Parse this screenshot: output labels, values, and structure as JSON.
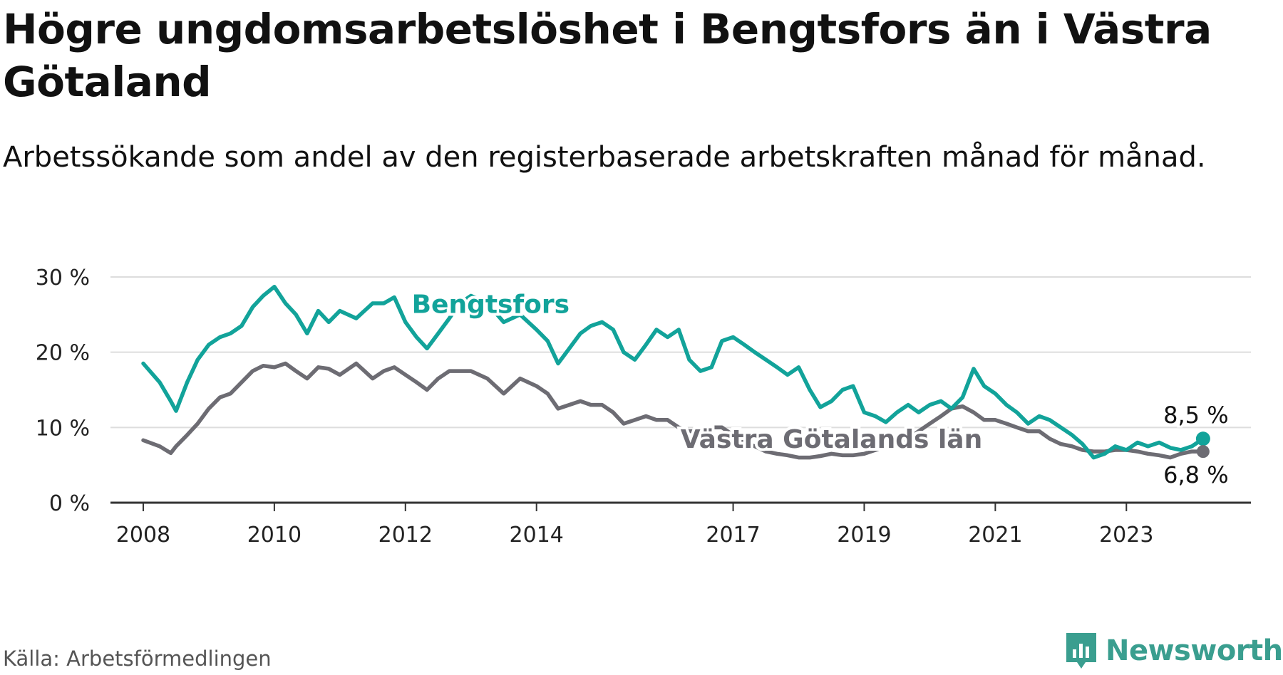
{
  "title": "Högre ungdomsarbetslöshet i Bengtsfors än i Västra Götaland",
  "subtitle": "Arbetssökande som andel av den registerbaserade arbetskraften månad för månad.",
  "source": "Källa: Arbetsförmedlingen",
  "logo_text": "Newsworthy",
  "colors": {
    "bengtsfors": "#12a39a",
    "vastra_gotaland": "#6d6c73",
    "grid": "#dddddd",
    "axis": "#333333",
    "logo": "#3a9e8f"
  },
  "chart_data": {
    "type": "line",
    "title": "Högre ungdomsarbetslöshet i Bengtsfors än i Västra Götaland",
    "subtitle": "Arbetssökande som andel av den registerbaserade arbetskraften månad för månad.",
    "xlabel": "",
    "ylabel": "",
    "x_range": [
      2007.5,
      2024.9
    ],
    "ylim": [
      0,
      30
    ],
    "y_ticks": [
      0,
      10,
      20,
      30
    ],
    "y_tick_labels": [
      "0 %",
      "10 %",
      "20 %",
      "30 %"
    ],
    "x_ticks": [
      2008,
      2010,
      2012,
      2014,
      2017,
      2019,
      2021,
      2023
    ],
    "x_tick_labels": [
      "2008",
      "2010",
      "2012",
      "2014",
      "2017",
      "2019",
      "2021",
      "2023"
    ],
    "grid": true,
    "series": [
      {
        "name": "Bengtsfors",
        "color": "#12a39a",
        "end_value_label": "8,5 %",
        "x": [
          2008.0,
          2008.25,
          2008.42,
          2008.5,
          2008.67,
          2008.83,
          2009.0,
          2009.17,
          2009.33,
          2009.5,
          2009.67,
          2009.83,
          2010.0,
          2010.17,
          2010.33,
          2010.5,
          2010.67,
          2010.83,
          2011.0,
          2011.25,
          2011.5,
          2011.67,
          2011.83,
          2012.0,
          2012.17,
          2012.33,
          2012.5,
          2012.67,
          2012.83,
          2013.0,
          2013.25,
          2013.5,
          2013.75,
          2014.0,
          2014.17,
          2014.33,
          2014.5,
          2014.67,
          2014.83,
          2015.0,
          2015.17,
          2015.33,
          2015.5,
          2015.67,
          2015.83,
          2016.0,
          2016.17,
          2016.33,
          2016.5,
          2016.67,
          2016.83,
          2017.0,
          2017.17,
          2017.33,
          2017.5,
          2017.67,
          2017.83,
          2018.0,
          2018.17,
          2018.33,
          2018.5,
          2018.67,
          2018.83,
          2019.0,
          2019.17,
          2019.33,
          2019.5,
          2019.67,
          2019.83,
          2020.0,
          2020.17,
          2020.33,
          2020.5,
          2020.67,
          2020.83,
          2021.0,
          2021.17,
          2021.33,
          2021.5,
          2021.67,
          2021.83,
          2022.0,
          2022.17,
          2022.33,
          2022.5,
          2022.67,
          2022.83,
          2023.0,
          2023.17,
          2023.33,
          2023.5,
          2023.67,
          2023.83,
          2024.0,
          2024.17
        ],
        "values": [
          18.5,
          16.0,
          13.5,
          12.2,
          16.0,
          19.0,
          21.0,
          22.0,
          22.5,
          23.5,
          26.0,
          27.5,
          28.7,
          26.5,
          25.0,
          22.5,
          25.5,
          24.0,
          25.5,
          24.5,
          26.5,
          26.5,
          27.3,
          24.0,
          22.0,
          20.5,
          22.5,
          24.5,
          26.5,
          27.5,
          26.5,
          24.0,
          25.0,
          23.0,
          21.5,
          18.5,
          20.5,
          22.5,
          23.5,
          24.0,
          23.0,
          20.0,
          19.0,
          21.0,
          23.0,
          22.0,
          23.0,
          19.0,
          17.5,
          18.0,
          21.5,
          22.0,
          21.0,
          20.0,
          19.0,
          18.0,
          17.0,
          18.0,
          15.0,
          12.7,
          13.5,
          15.0,
          15.5,
          12.0,
          11.5,
          10.7,
          12.0,
          13.0,
          12.0,
          13.0,
          13.5,
          12.5,
          14.0,
          17.8,
          15.5,
          14.5,
          13.0,
          12.0,
          10.5,
          11.5,
          11.0,
          10.0,
          9.0,
          7.8,
          6.0,
          6.5,
          7.5,
          7.0,
          8.0,
          7.5,
          8.0,
          7.3,
          7.0,
          7.5,
          8.5
        ]
      },
      {
        "name": "Västra Götalands län",
        "color": "#6d6c73",
        "end_value_label": "6,8 %",
        "x": [
          2008.0,
          2008.25,
          2008.42,
          2008.5,
          2008.67,
          2008.83,
          2009.0,
          2009.17,
          2009.33,
          2009.5,
          2009.67,
          2009.83,
          2010.0,
          2010.17,
          2010.33,
          2010.5,
          2010.67,
          2010.83,
          2011.0,
          2011.25,
          2011.5,
          2011.67,
          2011.83,
          2012.0,
          2012.17,
          2012.33,
          2012.5,
          2012.67,
          2012.83,
          2013.0,
          2013.25,
          2013.5,
          2013.75,
          2014.0,
          2014.17,
          2014.33,
          2014.5,
          2014.67,
          2014.83,
          2015.0,
          2015.17,
          2015.33,
          2015.5,
          2015.67,
          2015.83,
          2016.0,
          2016.17,
          2016.33,
          2016.5,
          2016.67,
          2016.83,
          2017.0,
          2017.17,
          2017.33,
          2017.5,
          2017.67,
          2017.83,
          2018.0,
          2018.17,
          2018.33,
          2018.5,
          2018.67,
          2018.83,
          2019.0,
          2019.17,
          2019.33,
          2019.5,
          2019.67,
          2019.83,
          2020.0,
          2020.17,
          2020.33,
          2020.5,
          2020.67,
          2020.83,
          2021.0,
          2021.17,
          2021.33,
          2021.5,
          2021.67,
          2021.83,
          2022.0,
          2022.17,
          2022.33,
          2022.5,
          2022.67,
          2022.83,
          2023.0,
          2023.17,
          2023.33,
          2023.5,
          2023.67,
          2023.83,
          2024.0,
          2024.17
        ],
        "values": [
          8.3,
          7.5,
          6.6,
          7.5,
          9.0,
          10.5,
          12.5,
          14.0,
          14.5,
          16.0,
          17.5,
          18.2,
          18.0,
          18.5,
          17.5,
          16.5,
          18.0,
          17.8,
          17.0,
          18.5,
          16.5,
          17.5,
          18.0,
          17.0,
          16.0,
          15.0,
          16.5,
          17.5,
          17.5,
          17.5,
          16.5,
          14.5,
          16.5,
          15.5,
          14.5,
          12.5,
          13.0,
          13.5,
          13.0,
          13.0,
          12.0,
          10.5,
          11.0,
          11.5,
          11.0,
          11.0,
          10.0,
          9.5,
          9.5,
          10.0,
          10.0,
          9.0,
          8.0,
          7.5,
          6.8,
          6.5,
          6.3,
          6.0,
          6.0,
          6.2,
          6.5,
          6.3,
          6.3,
          6.5,
          7.0,
          7.5,
          8.0,
          8.5,
          9.5,
          10.5,
          11.5,
          12.5,
          12.8,
          12.0,
          11.0,
          11.0,
          10.5,
          10.0,
          9.5,
          9.5,
          8.5,
          7.8,
          7.5,
          7.0,
          6.8,
          6.8,
          7.0,
          7.0,
          6.8,
          6.5,
          6.3,
          6.0,
          6.5,
          6.8,
          6.8
        ]
      }
    ],
    "annotations": [
      {
        "text": "Bengtsfors",
        "series": "Bengtsfors",
        "x": 2013.3,
        "y": 25.2
      },
      {
        "text": "Västra Götalands län",
        "series": "Västra Götalands län",
        "x": 2018.5,
        "y": 7.3
      }
    ]
  }
}
